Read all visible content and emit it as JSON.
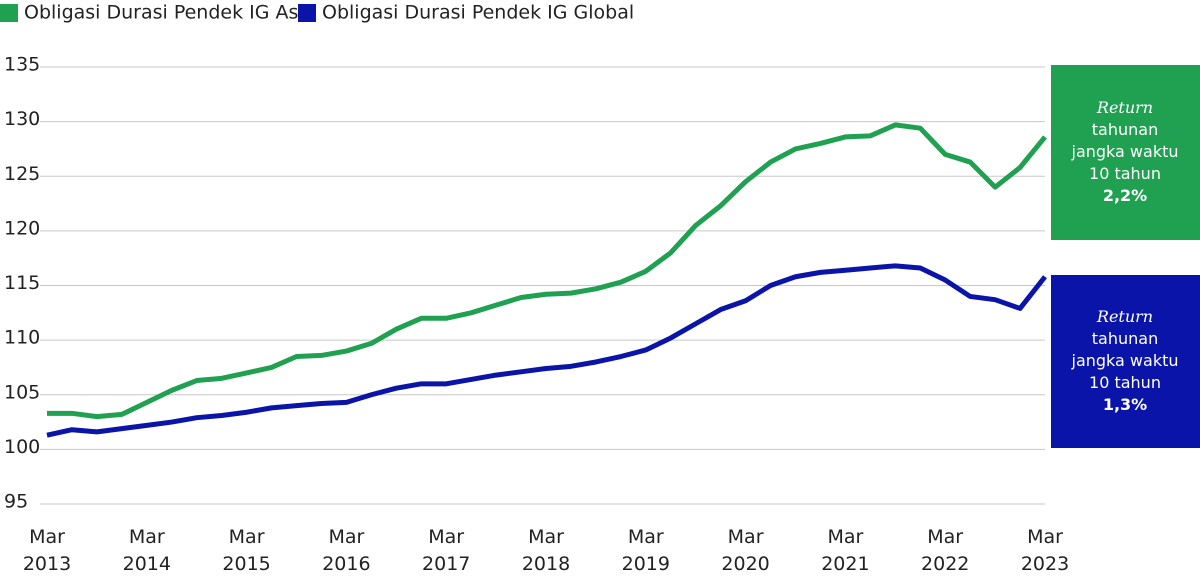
{
  "chart_data": {
    "type": "line",
    "categories": [
      "Mar 2013",
      null,
      null,
      null,
      "Mar 2014",
      null,
      null,
      null,
      "Mar 2015",
      null,
      null,
      null,
      "Mar 2016",
      null,
      null,
      null,
      "Mar 2017",
      null,
      null,
      null,
      "Mar 2018",
      null,
      null,
      null,
      "Mar 2019",
      null,
      null,
      null,
      "Mar 2020",
      null,
      null,
      null,
      "Mar 2021",
      null,
      null,
      null,
      "Mar 2022",
      null,
      null,
      null,
      "Mar 2023"
    ],
    "series": [
      {
        "name": "Obligasi Durasi Pendek IG Asia",
        "color": "#1fa151",
        "values": [
          103.3,
          103.3,
          103.0,
          103.2,
          104.3,
          105.4,
          106.3,
          106.5,
          107.0,
          107.5,
          108.5,
          108.6,
          109.0,
          109.7,
          111.0,
          112.0,
          112.0,
          112.5,
          113.2,
          113.9,
          114.2,
          114.3,
          114.7,
          115.3,
          116.3,
          118.0,
          120.5,
          122.3,
          124.5,
          126.3,
          127.5,
          128.0,
          128.6,
          128.7,
          129.7,
          129.4,
          127.0,
          126.3,
          124.0,
          125.8,
          128.6
        ]
      },
      {
        "name": "Obligasi Durasi Pendek IG Global",
        "color": "#0a14a8",
        "values": [
          101.3,
          101.8,
          101.6,
          101.9,
          102.2,
          102.5,
          102.9,
          103.1,
          103.4,
          103.8,
          104.0,
          104.2,
          104.3,
          105.0,
          105.6,
          106.0,
          106.0,
          106.4,
          106.8,
          107.1,
          107.4,
          107.6,
          108.0,
          108.5,
          109.1,
          110.2,
          111.5,
          112.8,
          113.6,
          115.0,
          115.8,
          116.2,
          116.4,
          116.6,
          116.8,
          116.6,
          115.5,
          114.0,
          113.7,
          112.9,
          115.8
        ]
      }
    ],
    "ylim": [
      95,
      135
    ],
    "yticks": [
      95,
      100,
      105,
      110,
      115,
      120,
      125,
      130,
      135
    ],
    "grid": true,
    "annotations": [
      {
        "color": "#1fa151",
        "lines": [
          "Return",
          "tahunan",
          "jangka waktu",
          "10 tahun",
          "2,2%"
        ]
      },
      {
        "color": "#0a14a8",
        "lines": [
          "Return",
          "tahunan",
          "jangka waktu",
          "10 tahun",
          "1,3%"
        ]
      }
    ]
  }
}
